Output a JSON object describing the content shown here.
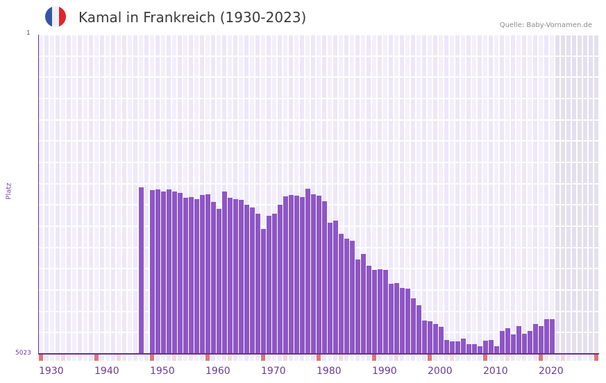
{
  "header": {
    "title": "Kamal in Frankreich (1930-2023)",
    "source": "Quelle: Baby-Vornamen.de",
    "flag_colors": [
      "#3355a8",
      "#eef0f6",
      "#e3242b"
    ]
  },
  "axis": {
    "y_title": "Platz",
    "y_top_label": "1",
    "y_bottom_label": "5023",
    "x_labels": [
      "1930",
      "1940",
      "1950",
      "1960",
      "1970",
      "1980",
      "1990",
      "2000",
      "2010",
      "2020"
    ]
  },
  "colors": {
    "bar": "#8e56c6",
    "axis": "#6a2f8f",
    "grid_light": "#f3effb",
    "grid_dark": "#ede7f8",
    "future_shade": "#e4dfee",
    "tick_red": "#e07378",
    "tick_pink": "#f5d6de"
  },
  "chart_data": {
    "type": "bar",
    "title": "Kamal in Frankreich (1930-2023)",
    "xlabel": "",
    "ylabel": "Platz",
    "ylim": [
      5023,
      1
    ],
    "y_inverted": true,
    "x_range": [
      1930,
      2030
    ],
    "grid": true,
    "legend": null,
    "annotations": [
      "Quelle: Baby-Vornamen.de"
    ],
    "x": [
      1948,
      1950,
      1951,
      1952,
      1953,
      1954,
      1955,
      1956,
      1957,
      1958,
      1959,
      1960,
      1961,
      1962,
      1963,
      1964,
      1965,
      1966,
      1967,
      1968,
      1969,
      1970,
      1971,
      1972,
      1973,
      1974,
      1975,
      1976,
      1977,
      1978,
      1979,
      1980,
      1981,
      1982,
      1983,
      1984,
      1985,
      1986,
      1987,
      1988,
      1989,
      1990,
      1991,
      1992,
      1993,
      1994,
      1995,
      1996,
      1997,
      1998,
      1999,
      2000,
      2001,
      2002,
      2003,
      2004,
      2005,
      2006,
      2007,
      2008,
      2009,
      2010,
      2011,
      2012,
      2013,
      2014,
      2015,
      2016,
      2017,
      2018,
      2019,
      2020,
      2021,
      2022
    ],
    "values": [
      2406,
      2450,
      2439,
      2472,
      2439,
      2472,
      2494,
      2571,
      2560,
      2592,
      2527,
      2516,
      2636,
      2745,
      2472,
      2571,
      2592,
      2603,
      2680,
      2724,
      2822,
      3062,
      2855,
      2822,
      2680,
      2549,
      2527,
      2538,
      2560,
      2428,
      2516,
      2538,
      2625,
      2964,
      2931,
      3138,
      3215,
      3247,
      3542,
      3455,
      3641,
      3706,
      3695,
      3706,
      3924,
      3914,
      3990,
      4001,
      4154,
      4263,
      4503,
      4514,
      4558,
      4601,
      4809,
      4831,
      4831,
      4787,
      4874,
      4874,
      4907,
      4820,
      4809,
      4907,
      4667,
      4623,
      4722,
      4591,
      4711,
      4667,
      4558,
      4591,
      4481,
      4481
    ]
  }
}
